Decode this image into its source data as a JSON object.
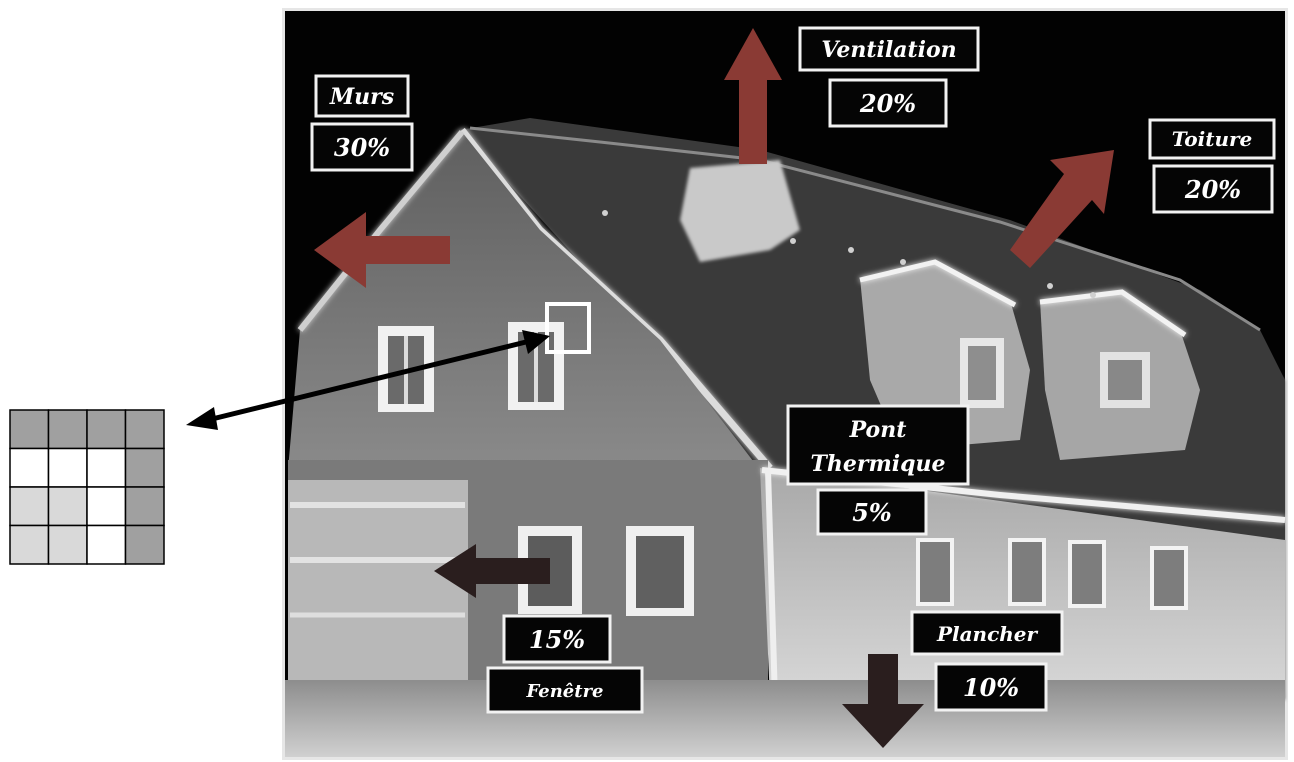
{
  "labels": {
    "murs": {
      "name": "Murs",
      "percent": "30%"
    },
    "ventilation": {
      "name": "Ventilation",
      "percent": "20%"
    },
    "toiture": {
      "name": "Toiture",
      "percent": "20%"
    },
    "pont": {
      "name_line1": "Pont",
      "name_line2": "Thermique",
      "percent": "5%"
    },
    "fenetre": {
      "name": "Fenêtre",
      "percent": "15%"
    },
    "plancher": {
      "name": "Plancher",
      "percent": "10%"
    }
  },
  "pixel_grid": {
    "rows": 4,
    "cols": 4,
    "cells": [
      [
        "dark",
        "dark",
        "dark",
        "dark"
      ],
      [
        "white",
        "white",
        "white",
        "dark"
      ],
      [
        "light",
        "light",
        "white",
        "dark"
      ],
      [
        "light",
        "light",
        "white",
        "dark"
      ]
    ],
    "colors": {
      "dark": "#a0a0a0",
      "light": "#d9d9d9",
      "white": "#ffffff"
    }
  },
  "colors": {
    "arrow_red": "#8a3a34",
    "arrow_dark": "#2a1e1e",
    "label_bg": "#050505",
    "label_border": "#f2f2f2"
  }
}
